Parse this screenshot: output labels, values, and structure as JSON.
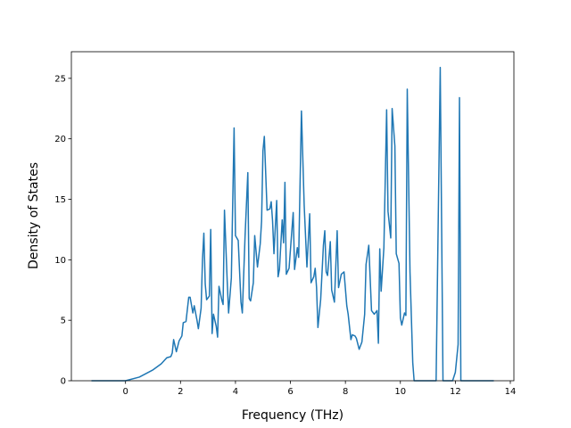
{
  "chart_data": {
    "type": "line",
    "x_label": "Frequency (THz)",
    "y_label": "Density of States",
    "xlim": [
      -1.97,
      14.13
    ],
    "ylim": [
      0,
      27.2
    ],
    "xticks": [
      0,
      2,
      4,
      6,
      8,
      10,
      12,
      14
    ],
    "yticks": [
      0,
      5,
      10,
      15,
      20,
      25
    ],
    "x": [
      -1.24,
      0,
      0.5,
      1,
      1.3,
      1.5,
      1.65,
      1.7,
      1.75,
      1.85,
      1.95,
      2.05,
      2.1,
      2.2,
      2.3,
      2.35,
      2.45,
      2.5,
      2.6,
      2.65,
      2.75,
      2.8,
      2.85,
      2.9,
      2.95,
      3.05,
      3.1,
      3.15,
      3.2,
      3.3,
      3.35,
      3.4,
      3.5,
      3.55,
      3.6,
      3.7,
      3.75,
      3.85,
      3.95,
      4.0,
      4.1,
      4.2,
      4.25,
      4.35,
      4.45,
      4.5,
      4.55,
      4.65,
      4.7,
      4.8,
      4.9,
      4.95,
      5.0,
      5.05,
      5.15,
      5.25,
      5.3,
      5.35,
      5.4,
      5.5,
      5.55,
      5.6,
      5.7,
      5.75,
      5.8,
      5.85,
      5.95,
      6.1,
      6.15,
      6.25,
      6.3,
      6.4,
      6.5,
      6.6,
      6.7,
      6.75,
      6.85,
      6.9,
      6.95,
      7.0,
      7.1,
      7.2,
      7.25,
      7.3,
      7.35,
      7.45,
      7.5,
      7.6,
      7.7,
      7.75,
      7.85,
      7.95,
      8.05,
      8.1,
      8.2,
      8.25,
      8.35,
      8.4,
      8.5,
      8.6,
      8.7,
      8.75,
      8.85,
      8.95,
      9.05,
      9.15,
      9.2,
      9.25,
      9.3,
      9.4,
      9.5,
      9.55,
      9.65,
      9.7,
      9.8,
      9.85,
      9.95,
      10.0,
      10.05,
      10.15,
      10.2,
      10.25,
      10.35,
      10.45,
      10.5,
      11.3,
      11.45,
      11.55,
      11.9,
      12.0,
      12.1,
      12.15,
      12.2,
      13.4
    ],
    "series": [
      {
        "color": "#1f77b4",
        "values": [
          0,
          0,
          0.3,
          0.9,
          1.4,
          1.9,
          2.0,
          2.3,
          3.4,
          2.4,
          3.3,
          3.7,
          4.8,
          4.9,
          6.9,
          6.9,
          5.6,
          6.2,
          5.0,
          4.3,
          6.0,
          10.0,
          12.2,
          8.0,
          6.7,
          7.0,
          12.5,
          3.9,
          5.5,
          4.5,
          3.6,
          7.8,
          6.7,
          6.3,
          14.1,
          8.2,
          5.6,
          8.5,
          20.9,
          12.0,
          11.6,
          6.5,
          5.6,
          12.0,
          17.2,
          6.8,
          6.6,
          8.1,
          12.0,
          9.4,
          11.3,
          13.2,
          19.0,
          20.2,
          14.1,
          14.2,
          14.8,
          13.2,
          10.5,
          14.9,
          8.6,
          9.2,
          13.3,
          11.4,
          16.4,
          8.8,
          9.3,
          13.9,
          9.2,
          11.0,
          10.2,
          22.3,
          14.5,
          9.4,
          13.8,
          8.1,
          8.6,
          9.3,
          7.7,
          4.4,
          6.7,
          11.2,
          12.4,
          9.0,
          8.7,
          11.5,
          7.5,
          6.5,
          12.4,
          7.7,
          8.8,
          9.0,
          6.2,
          5.5,
          3.4,
          3.8,
          3.7,
          3.5,
          2.6,
          3.2,
          5.5,
          9.6,
          11.2,
          5.8,
          5.5,
          5.8,
          3.1,
          10.9,
          7.4,
          11.0,
          22.4,
          14.0,
          11.8,
          22.5,
          19.4,
          10.5,
          9.7,
          5.2,
          4.6,
          5.6,
          5.4,
          24.1,
          9.0,
          1.5,
          0,
          0,
          25.9,
          0,
          0,
          0.7,
          3.0,
          23.4,
          0,
          0
        ]
      }
    ]
  }
}
